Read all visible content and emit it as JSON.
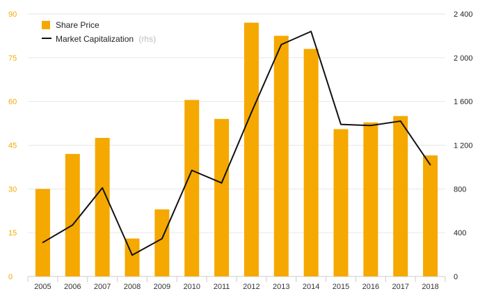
{
  "chart_data": {
    "type": "bar",
    "categories": [
      "2005",
      "2006",
      "2007",
      "2008",
      "2009",
      "2010",
      "2011",
      "2012",
      "2013",
      "2014",
      "2015",
      "2016",
      "2017",
      "2018"
    ],
    "series": [
      {
        "name": "Share Price",
        "type": "bar",
        "axis": "left",
        "color": "#F5A800",
        "values": [
          30,
          42,
          47.5,
          13,
          23,
          60.5,
          54,
          87,
          82.5,
          78,
          50.5,
          52.8,
          55,
          41.5
        ]
      },
      {
        "name": "Market Capitalization",
        "type": "line",
        "axis": "right",
        "color": "#111111",
        "values": [
          310,
          470,
          810,
          195,
          345,
          970,
          855,
          1500,
          2120,
          2240,
          1390,
          1380,
          1420,
          1020
        ]
      }
    ],
    "left_axis": {
      "ticks": [
        "0",
        "15",
        "30",
        "45",
        "60",
        "75",
        "90"
      ],
      "ylim": [
        0,
        90
      ]
    },
    "right_axis": {
      "ticks": [
        "0",
        "400",
        "800",
        "1 200",
        "1 600",
        "2 000",
        "2 400"
      ],
      "ylim": [
        0,
        2400
      ]
    },
    "legend": {
      "bar_label": "Share Price",
      "line_label": "Market Capitalization",
      "line_suffix": "(rhs)",
      "position": "top-left"
    },
    "grid": true
  }
}
